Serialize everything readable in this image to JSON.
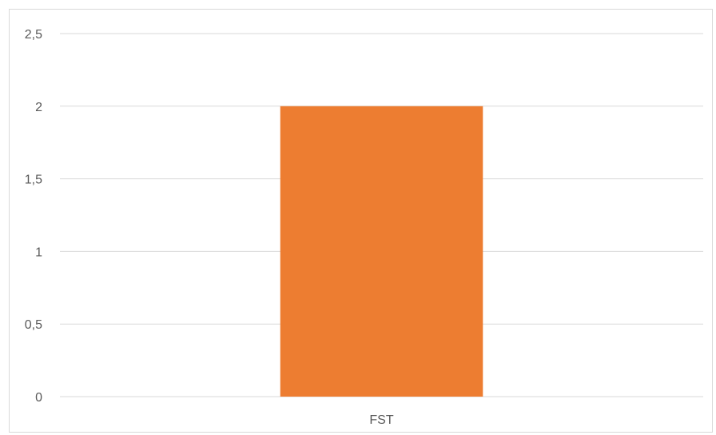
{
  "chart_data": {
    "type": "bar",
    "title": "",
    "xlabel": "",
    "ylabel": "",
    "categories": [
      "FST"
    ],
    "values": [
      2
    ],
    "ylim": [
      0,
      2.5
    ],
    "yticks": [
      0,
      0.5,
      1,
      1.5,
      2,
      2.5
    ],
    "ytick_labels": [
      "0",
      "0,5",
      "1",
      "1,5",
      "2",
      "2,5"
    ],
    "grid": true,
    "legend": "none",
    "colors": {
      "bar": "#ED7D31",
      "grid": "#D9D9D9",
      "axis_text": "#595959",
      "frame": "#D9D9D9"
    }
  }
}
